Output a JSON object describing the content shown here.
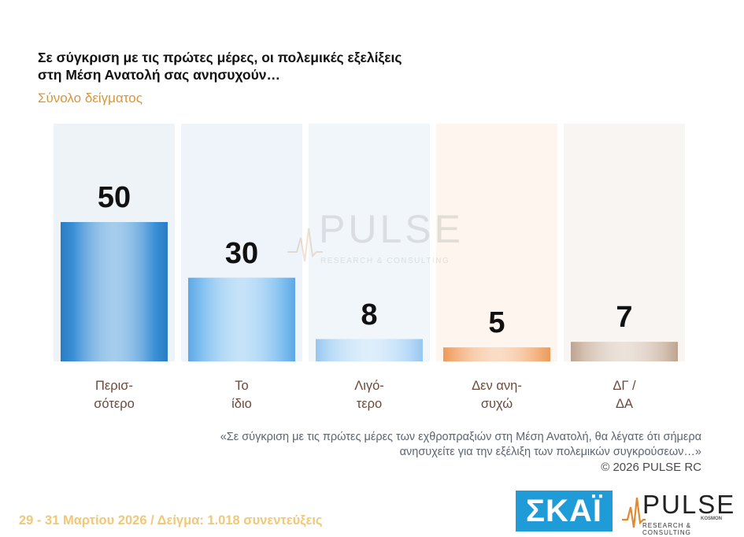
{
  "title_line1": "Σε σύγκριση με τις πρώτες μέρες, οι πολεμικές εξελίξεις",
  "title_line2": "στη Μέση Ανατολή σας ανησυχούν…",
  "subtitle": "Σύνολο δείγματος",
  "watermark": {
    "main": "PULSE",
    "sub": "RESEARCH & CONSULTING"
  },
  "question_line1": "«Σε σύγκριση με τις πρώτες μέρες των εχθροπραξιών στη Μέση Ανατολή, θα λέγατε ότι σήμερα",
  "question_line2": "ανησυχείτε για την εξέλιξη των πολεμικών συγκρούσεων…»",
  "copyright": "©  2026  PULSE RC",
  "footer": "29 - 31  Μαρτίου 2026  /  Δείγμα:  1.018 συνεντεύξεις",
  "logos": {
    "skai": "ΣΚΑΪ",
    "pulse": "PULSE",
    "pulse_sub": "RESEARCH & CONSULTING",
    "pulse_tag": "KOSMON"
  },
  "chart_data": {
    "type": "bar",
    "categories_line1": [
      "Περισ-",
      "Το",
      "Λιγό-",
      "Δεν ανη-",
      "ΔΓ /"
    ],
    "categories_line2": [
      "σότερο",
      "ίδιο",
      "τερο",
      "συχώ",
      "ΔΑ"
    ],
    "values": [
      50,
      30,
      8,
      5,
      7
    ],
    "value_labels": [
      "50",
      "30",
      "8",
      "5",
      "7"
    ],
    "ylim": [
      0,
      100
    ],
    "colors": {
      "bar": [
        "#3a8fd6",
        "#7fbff0",
        "#b5d9f7",
        "#f4b27f",
        "#d2bfae"
      ],
      "bar_edge": [
        "#2a7cc2",
        "#5ea8e6",
        "#98c6ee",
        "#ec9a5a",
        "#bda48f"
      ],
      "track": [
        "#eef3f8",
        "#eef4fa",
        "#f1f6fb",
        "#fdf5ee",
        "#f8f5f2"
      ]
    }
  }
}
